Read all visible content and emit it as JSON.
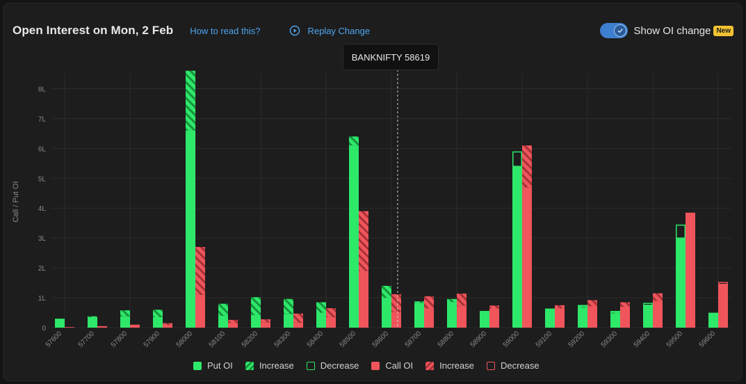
{
  "header": {
    "title": "Open Interest on Mon, 2 Feb",
    "help_link": "How to read this?",
    "replay_label": "Replay Change",
    "toggle_label": "Show OI change",
    "badge": "New",
    "toggle_on": true
  },
  "tooltip": {
    "text": "BANKNIFTY 58619"
  },
  "legend": [
    {
      "label": "Put OI",
      "kind": "put-solid"
    },
    {
      "label": "Increase",
      "kind": "put-hatch"
    },
    {
      "label": "Decrease",
      "kind": "put-outline"
    },
    {
      "label": "Call OI",
      "kind": "call-solid"
    },
    {
      "label": "Increase",
      "kind": "call-hatch"
    },
    {
      "label": "Decrease",
      "kind": "call-outline"
    }
  ],
  "colors": {
    "put": "#2ee86a",
    "call": "#f0555c",
    "put_hatch": "#17923c",
    "call_hatch": "#a43238",
    "grid": "#2c2c2c",
    "axis_text": "#8a8a8a"
  },
  "chart_data": {
    "type": "bar",
    "ylabel": "Call / Put OI",
    "ylim": [
      0,
      8.5
    ],
    "yticks": [
      0,
      1,
      2,
      3,
      4,
      5,
      6,
      7,
      8
    ],
    "ytick_labels": [
      "0",
      "1L",
      "2L",
      "3L",
      "4L",
      "5L",
      "6L",
      "7L",
      "8L"
    ],
    "spot_marker": {
      "label": "BANKNIFTY 58619",
      "value": 58619
    },
    "categories": [
      "57600",
      "57700",
      "57800",
      "57900",
      "58000",
      "58100",
      "58200",
      "58300",
      "58400",
      "58500",
      "58600",
      "58700",
      "58800",
      "58900",
      "59000",
      "59100",
      "59200",
      "59300",
      "59400",
      "59500",
      "59600"
    ],
    "series": [
      {
        "name": "Put OI",
        "values": [
          0.3,
          0.38,
          0.58,
          0.6,
          8.6,
          0.8,
          1.02,
          0.96,
          0.85,
          6.4,
          1.4,
          0.88,
          0.96,
          0.56,
          5.4,
          0.64,
          0.72,
          0.52,
          0.75,
          3.0,
          0.5
        ]
      },
      {
        "name": "Increase",
        "values": [
          0,
          0.03,
          0.2,
          0.25,
          2.0,
          0.4,
          0.6,
          0.5,
          0.35,
          0.3,
          0.4,
          0.05,
          0.1,
          0,
          0,
          0,
          0.04,
          0.04,
          0,
          0,
          0
        ]
      },
      {
        "name": "Decrease",
        "values": [
          0,
          0,
          0,
          0,
          0,
          0,
          0,
          0,
          0,
          0,
          0,
          0,
          0,
          0,
          0.5,
          0,
          0.04,
          0.04,
          0.08,
          0.45,
          0
        ]
      },
      {
        "name": "Call OI",
        "values": [
          0.02,
          0.05,
          0.1,
          0.15,
          2.7,
          0.26,
          0.28,
          0.47,
          0.65,
          3.9,
          1.12,
          1.05,
          1.14,
          0.74,
          6.1,
          0.75,
          0.92,
          0.85,
          1.15,
          3.85,
          1.45
        ]
      },
      {
        "name": "Increase",
        "values": [
          0,
          0,
          0,
          0.05,
          1.6,
          0.1,
          0.1,
          0.3,
          0.3,
          2.0,
          0.6,
          0.4,
          0.4,
          0.1,
          1.4,
          0.1,
          0.2,
          0.15,
          0.25,
          0,
          0
        ]
      },
      {
        "name": "Decrease",
        "values": [
          0,
          0,
          0,
          0,
          0,
          0,
          0,
          0,
          0,
          0,
          0,
          0,
          0,
          0,
          0,
          0,
          0,
          0,
          0,
          0,
          0.08
        ]
      }
    ]
  }
}
